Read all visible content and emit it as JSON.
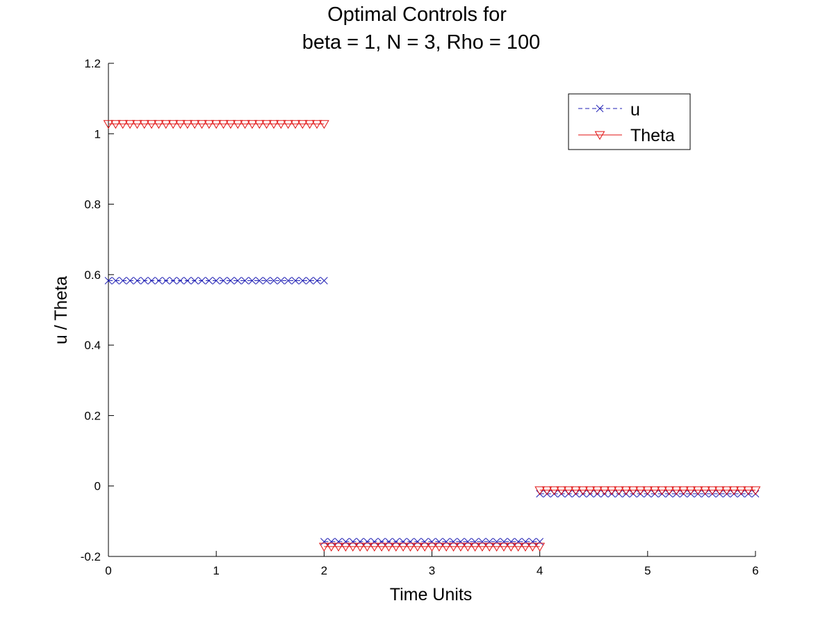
{
  "chart_data": {
    "type": "line",
    "title": "Optimal Controls for",
    "subtitle": "beta = 1, N = 3, Rho = 100",
    "xlabel": "Time Units",
    "ylabel": "u / Theta",
    "xlim": [
      0,
      6
    ],
    "ylim": [
      -0.2,
      1.2
    ],
    "xticks": [
      "0",
      "1",
      "2",
      "3",
      "4",
      "5",
      "6"
    ],
    "yticks": [
      "-0.2",
      "0",
      "0.2",
      "0.4",
      "0.6",
      "0.8",
      "1",
      "1.2"
    ],
    "grid": false,
    "legend_position": "top-right",
    "series": [
      {
        "name": "u",
        "color": "#1f1fb4",
        "line_style": "dashed",
        "marker": "x",
        "segments": [
          {
            "x_start": 0,
            "x_end": 2,
            "y": 0.583
          },
          {
            "x_start": 2,
            "x_end": 4,
            "y": -0.158
          },
          {
            "x_start": 4,
            "x_end": 6,
            "y": -0.022
          }
        ]
      },
      {
        "name": "Theta",
        "color": "#e01010",
        "line_style": "solid",
        "marker": "triangle-down",
        "segments": [
          {
            "x_start": 0,
            "x_end": 2,
            "y": 1.028
          },
          {
            "x_start": 2,
            "x_end": 4,
            "y": -0.172
          },
          {
            "x_start": 4,
            "x_end": 6,
            "y": -0.012
          }
        ]
      }
    ]
  }
}
